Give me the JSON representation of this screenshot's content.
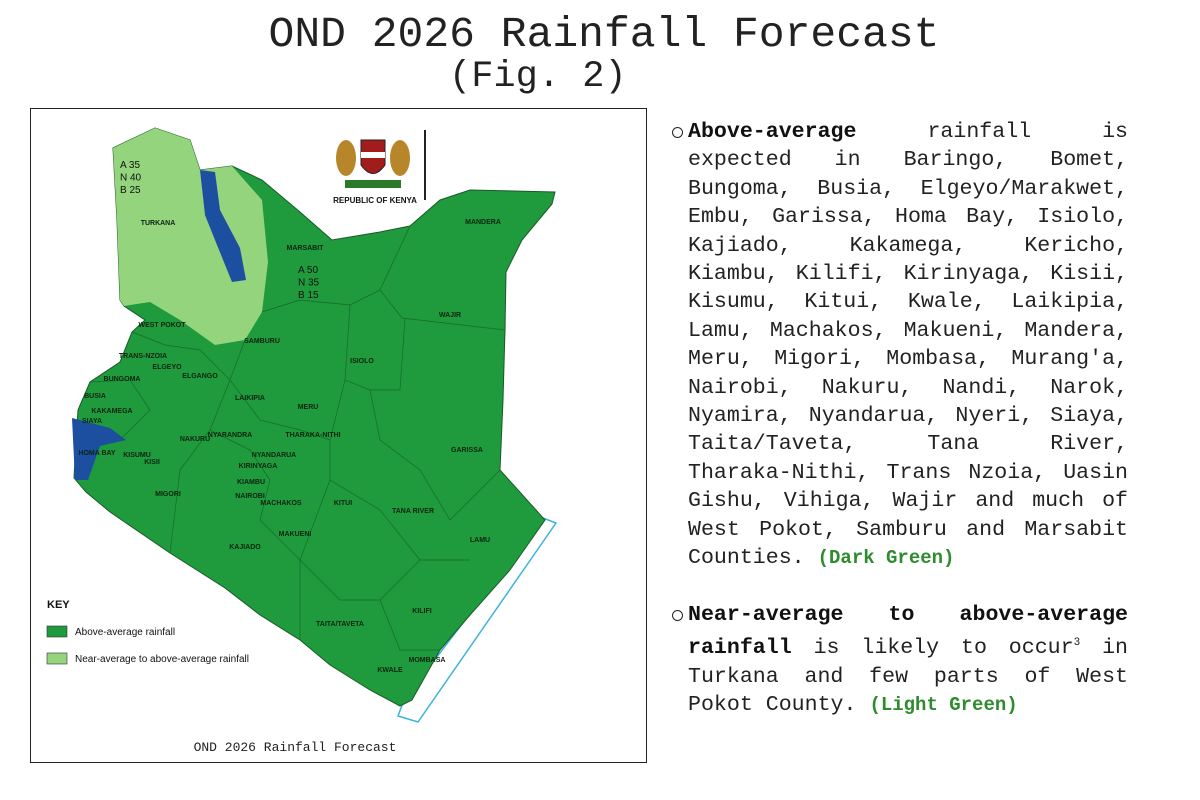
{
  "title": "OND 2026 Rainfall Forecast",
  "subtitle": "(Fig. 2)",
  "map": {
    "emblem_label": "REPUBLIC OF KENYA",
    "caption": "OND 2026 Rainfall Forecast",
    "zones": [
      {
        "lines": [
          "A 35",
          "N 40",
          "B 25"
        ]
      },
      {
        "lines": [
          "A 50",
          "N 35",
          "B 15"
        ]
      }
    ],
    "key": {
      "title": "KEY",
      "items": [
        {
          "label": "Above-average rainfall",
          "color": "#1f9a3c"
        },
        {
          "label": "Near-average to above-average rainfall",
          "color": "#93d47c"
        }
      ]
    },
    "counties": [
      "TURKANA",
      "MARSABIT",
      "MANDERA",
      "WAJIR",
      "WEST POKOT",
      "SAMBURU",
      "ISIOLO",
      "TRANS-NZOIA",
      "ELGEYO",
      "BUNGOMA",
      "BUSIA",
      "KAKAMEGA",
      "SIAYA",
      "HOMA BAY",
      "KISUMU",
      "KISII",
      "MIGORI",
      "ELGANGO",
      "LAIKIPIA",
      "MERU",
      "NAKURU",
      "NYARANDRA",
      "THARAKA-NITHI",
      "NYANDARUA",
      "KIRINYAGA",
      "KIAMBU",
      "NAIROBI",
      "MACHAKOS",
      "MAKUENI",
      "KAJIADO",
      "KITUI",
      "TANA RIVER",
      "GARISSA",
      "LAMU",
      "KILIFI",
      "TAITA/TAVETA",
      "MOMBASA",
      "KWALE"
    ]
  },
  "bullets": [
    {
      "bold": "Above-average",
      "text": "rainfall is expected in Baringo, Bomet, Bungoma, Busia, Elgeyo/Marakwet, Embu, Garissa, Homa Bay, Isiolo, Kajiado, Kakamega, Kericho, Kiambu, Kilifi, Kirinyaga, Kisii, Kisumu, Kitui, Kwale, Laikipia, Lamu, Machakos, Makueni, Mandera, Meru, Migori, Mombasa, Murang'a, Nairobi, Nakuru, Nandi, Narok, Nyamira, Nyandarua, Nyeri, Siaya, Taita/Taveta, Tana River, Tharaka-Nithi, Trans Nzoia, Uasin Gishu, Vihiga, Wajir and much of West Pokot, Samburu and Marsabit Counties.",
      "tag": "(Dark Green)"
    },
    {
      "bold": "Near-average to above-average rainfall",
      "text": "is likely to occur",
      "sup": "3",
      "text_after": "in Turkana and few parts of West Pokot County.",
      "tag": "(Light Green)"
    }
  ]
}
